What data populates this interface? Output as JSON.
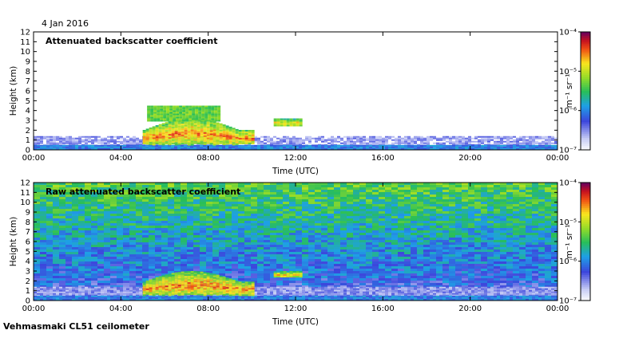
{
  "date_label": "4 Jan 2016",
  "instrument_label": "Vehmasmaki CL51 ceilometer",
  "colorbar": {
    "unit_label": "m⁻¹ sr⁻¹",
    "tick_labels": [
      "10⁻⁴",
      "10⁻⁵",
      "10⁻⁶",
      "10⁻⁷"
    ],
    "tick_values": [
      0.0001,
      1e-05,
      1e-06,
      1e-07
    ]
  },
  "chart_data": [
    {
      "type": "heatmap",
      "title": "Attenuated backscatter coefficient",
      "xlabel": "Time (UTC)",
      "ylabel": "Height (km)",
      "xlim": [
        0,
        24
      ],
      "ylim": [
        0,
        12
      ],
      "x_tick_labels": [
        "00:00",
        "04:00",
        "08:00",
        "12:00",
        "16:00",
        "20:00",
        "00:00"
      ],
      "x_tick_values": [
        0,
        4,
        8,
        12,
        16,
        20,
        24
      ],
      "y_tick_values": [
        0,
        1,
        2,
        3,
        4,
        5,
        6,
        7,
        8,
        9,
        10,
        11,
        12
      ],
      "color_scale": "log",
      "clim": [
        1e-07,
        0.0001
      ],
      "background_noise": false,
      "features": [
        {
          "kind": "boundary-layer",
          "t_start": 0,
          "t_end": 24,
          "h_top": 1.4,
          "value": 3e-07
        },
        {
          "kind": "surface-layer",
          "t_start": 0,
          "t_end": 24,
          "h_top": 0.5,
          "value": 1e-06
        },
        {
          "kind": "cloud-layer",
          "t_start": 5.0,
          "t_end": 10.0,
          "h_base": 0.6,
          "h_top": 3.2,
          "value": 3e-05
        },
        {
          "kind": "cloud-patch",
          "t_start": 11.0,
          "t_end": 12.3,
          "h_base": 2.4,
          "h_top": 3.2,
          "value": 2e-05
        },
        {
          "kind": "cloud-top",
          "t_start": 5.2,
          "t_end": 8.5,
          "h_base": 3.0,
          "h_top": 4.5,
          "value": 5e-06
        }
      ]
    },
    {
      "type": "heatmap",
      "title": "Raw attenuated backscatter coefficient",
      "xlabel": "Time (UTC)",
      "ylabel": "Height (km)",
      "xlim": [
        0,
        24
      ],
      "ylim": [
        0,
        12
      ],
      "x_tick_labels": [
        "00:00",
        "04:00",
        "08:00",
        "12:00",
        "16:00",
        "20:00",
        "00:00"
      ],
      "x_tick_values": [
        0,
        4,
        8,
        12,
        16,
        20,
        24
      ],
      "y_tick_values": [
        0,
        1,
        2,
        3,
        4,
        5,
        6,
        7,
        8,
        9,
        10,
        11,
        12
      ],
      "color_scale": "log",
      "clim": [
        1e-07,
        0.0001
      ],
      "background_noise": true,
      "features": [
        {
          "kind": "boundary-layer",
          "t_start": 0,
          "t_end": 24,
          "h_top": 1.4,
          "value": 3e-07
        },
        {
          "kind": "surface-layer",
          "t_start": 0,
          "t_end": 24,
          "h_top": 0.5,
          "value": 1e-06
        },
        {
          "kind": "cloud-layer",
          "t_start": 5.0,
          "t_end": 10.0,
          "h_base": 0.6,
          "h_top": 3.0,
          "value": 3e-05
        },
        {
          "kind": "cloud-patch",
          "t_start": 11.0,
          "t_end": 12.3,
          "h_base": 2.4,
          "h_top": 3.0,
          "value": 2e-05
        }
      ]
    }
  ]
}
